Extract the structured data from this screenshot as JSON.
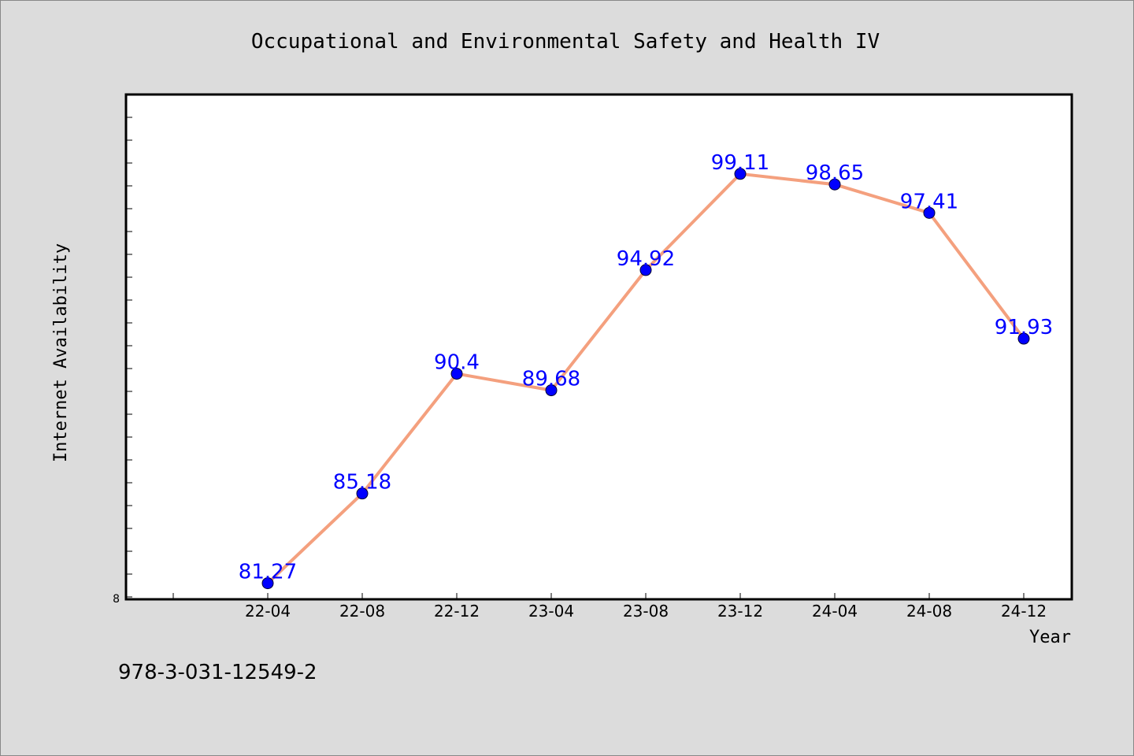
{
  "chart_data": {
    "type": "line",
    "title": "Occupational and Environmental Safety and Health IV",
    "xlabel": "Year",
    "ylabel": "Internet Availability",
    "categories": [
      "22-04",
      "22-08",
      "22-12",
      "23-04",
      "23-08",
      "23-12",
      "24-04",
      "24-08",
      "24-12"
    ],
    "series": [
      {
        "values": [
          81.27,
          85.18,
          90.4,
          89.68,
          94.92,
          99.11,
          98.65,
          97.41,
          91.93
        ]
      }
    ],
    "data_labels": [
      "81.27",
      "85.18",
      "90.4",
      "89.68",
      "94.92",
      "99.11",
      "98.65",
      "97.41",
      "91.93"
    ],
    "y_tick_label": "8",
    "ylim": [
      80.57,
      102.57
    ],
    "grid": false,
    "line_color": "#f4a07e",
    "marker_color": "#0000ff"
  },
  "footer": {
    "isbn": "978-3-031-12549-2"
  }
}
